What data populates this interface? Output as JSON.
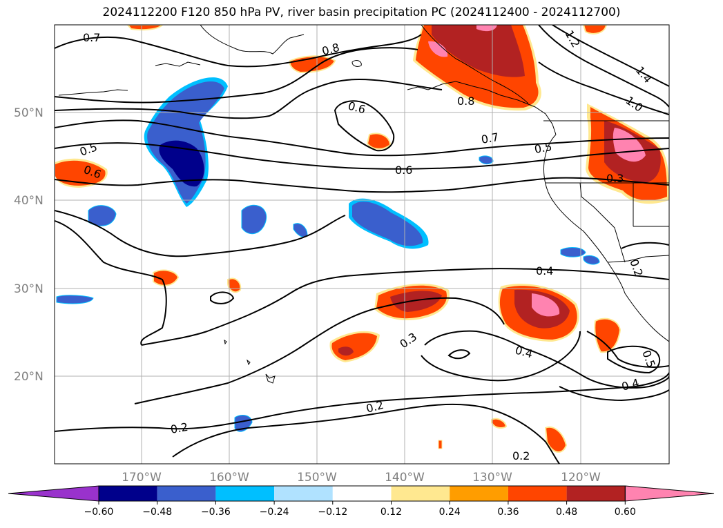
{
  "title": "2024112200 F120 850 hPa PV, river basin precipitation PC (2024112400 - 2024112700)",
  "map": {
    "lat_labels": [
      "50°N",
      "40°N",
      "30°N",
      "20°N"
    ],
    "lon_labels": [
      "170°W",
      "160°W",
      "150°W",
      "140°W",
      "130°W",
      "120°W"
    ],
    "contour_labels": [
      "0.7",
      "0.8",
      "0.6",
      "0.5",
      "0.6",
      "0.6",
      "0.7",
      "0.5",
      "0.8",
      "1.2",
      "1.4",
      "1.0",
      "0.3",
      "0.4",
      "0.3",
      "0.4",
      "0.5",
      "0.4",
      "0.2",
      "0.2",
      "0.2",
      "0.2"
    ],
    "grid": true,
    "fill_colors": {
      "purple": "#9932cc",
      "navy": "#00008b",
      "royal_blue": "#3a5fcd",
      "deep_sky": "#00bfff",
      "light_blue": "#b0e2ff",
      "yellow": "#ffe890",
      "orange": "#ff9d00",
      "red_orange": "#ff4500",
      "firebrick": "#b22222",
      "pink": "#ff83b0"
    }
  },
  "colorbar": {
    "ticks": [
      "−0.60",
      "−0.48",
      "−0.36",
      "−0.24",
      "−0.12",
      "0.12",
      "0.24",
      "0.36",
      "0.48",
      "0.60"
    ],
    "colors": [
      "#9932cc",
      "#00008b",
      "#3a5fcd",
      "#00bfff",
      "#b0e2ff",
      "#ffffff",
      "#ffe890",
      "#ff9d00",
      "#ff4500",
      "#b22222",
      "#ff83b0"
    ]
  }
}
